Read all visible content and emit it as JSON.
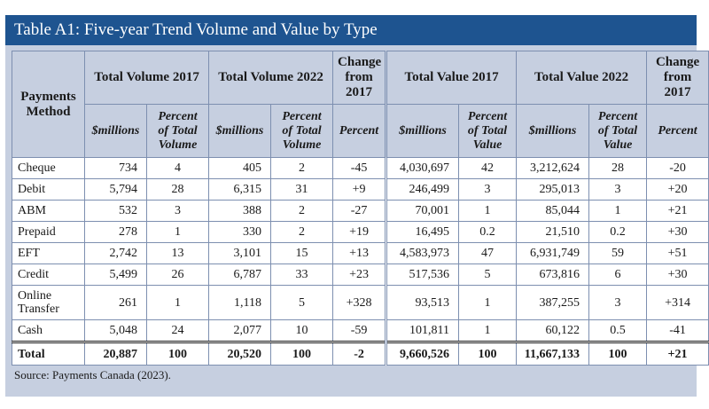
{
  "title": "Table A1: Five-year Trend Volume and Value by Type",
  "header": {
    "method": "Payments Method",
    "groups": [
      "Total Volume 2017",
      "Total Volume 2022",
      "Change from 2017",
      "Total Value 2017",
      "Total Value 2022",
      "Change from 2017"
    ],
    "sub": [
      "$millions",
      "Percent of Total Volume",
      "$millions",
      "Percent of Total Volume",
      "Percent",
      "$millions",
      "Percent of Total Value",
      "$millions",
      "Percent of Total Value",
      "Percent"
    ]
  },
  "rows": [
    {
      "method": "Cheque",
      "cells": [
        "734",
        "4",
        "405",
        "2",
        "-45",
        "4,030,697",
        "42",
        "3,212,624",
        "28",
        "-20"
      ]
    },
    {
      "method": "Debit",
      "cells": [
        "5,794",
        "28",
        "6,315",
        "31",
        "+9",
        "246,499",
        "3",
        "295,013",
        "3",
        "+20"
      ]
    },
    {
      "method": "ABM",
      "cells": [
        "532",
        "3",
        "388",
        "2",
        "-27",
        "70,001",
        "1",
        "85,044",
        "1",
        "+21"
      ]
    },
    {
      "method": "Prepaid",
      "cells": [
        "278",
        "1",
        "330",
        "2",
        "+19",
        "16,495",
        "0.2",
        "21,510",
        "0.2",
        "+30"
      ]
    },
    {
      "method": "EFT",
      "cells": [
        "2,742",
        "13",
        "3,101",
        "15",
        "+13",
        "4,583,973",
        "47",
        "6,931,749",
        "59",
        "+51"
      ]
    },
    {
      "method": "Credit",
      "cells": [
        "5,499",
        "26",
        "6,787",
        "33",
        "+23",
        "517,536",
        "5",
        "673,816",
        "6",
        "+30"
      ]
    },
    {
      "method": "Online Transfer",
      "cells": [
        "261",
        "1",
        "1,118",
        "5",
        "+328",
        "93,513",
        "1",
        "387,255",
        "3",
        "+314"
      ]
    },
    {
      "method": "Cash",
      "cells": [
        "5,048",
        "24",
        "2,077",
        "10",
        "-59",
        "101,811",
        "1",
        "60,122",
        "0.5",
        "-41"
      ]
    }
  ],
  "total": {
    "method": "Total",
    "cells": [
      "20,887",
      "100",
      "20,520",
      "100",
      "-2",
      "9,660,526",
      "100",
      "11,667,133",
      "100",
      "+21"
    ]
  },
  "source": "Source: Payments Canada (2023)."
}
